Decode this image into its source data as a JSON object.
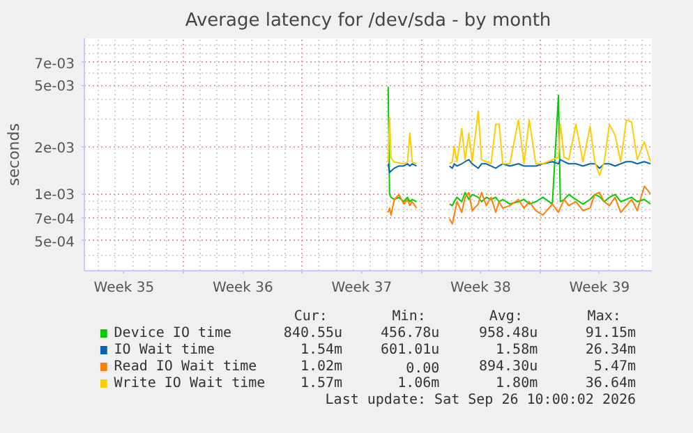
{
  "chart_data": {
    "type": "line",
    "title": "Average latency for /dev/sda - by month",
    "ylabel": "seconds",
    "log": "y",
    "grid": true,
    "legend": "bottom",
    "ylim": [
      0.00032,
      0.01
    ],
    "yticks": [
      {
        "value": 0.0005,
        "label": "5e-04"
      },
      {
        "value": 0.0007,
        "label": "7e-04"
      },
      {
        "value": 0.001,
        "label": "1e-03"
      },
      {
        "value": 0.002,
        "label": "2e-03"
      },
      {
        "value": 0.005,
        "label": "5e-03"
      },
      {
        "value": 0.007,
        "label": "7e-03"
      }
    ],
    "xlim": [
      "2026-08-25T04:00",
      "2026-09-27T14:00"
    ],
    "xticks": [
      {
        "value": "2026-08-27T12:00",
        "label": "Week 35"
      },
      {
        "value": "2026-08-31",
        "label": null
      },
      {
        "value": "2026-09-03T12:00",
        "label": "Week 36"
      },
      {
        "value": "2026-09-07",
        "label": null
      },
      {
        "value": "2026-09-10T12:00",
        "label": "Week 37"
      },
      {
        "value": "2026-09-14",
        "label": null
      },
      {
        "value": "2026-09-17T12:00",
        "label": "Week 38"
      },
      {
        "value": "2026-09-21",
        "label": null
      },
      {
        "value": "2026-09-24T12:00",
        "label": "Week 39"
      }
    ],
    "x": [
      "2026-09-12T01:20",
      "2026-09-12T03:20",
      "2026-09-12T05:20",
      "2026-09-12T10:00",
      "2026-09-12T16:40",
      "2026-09-12T23:20",
      "2026-09-13T04:40",
      "2026-09-13T08:00",
      "2026-09-13T11:20",
      "2026-09-13T17:20",
      "2026-09-14T16:40",
      "2026-09-15T16:00",
      "2026-09-15T20:00",
      "2026-09-15T22:40",
      "2026-09-16T02:40",
      "2026-09-16T09:20",
      "2026-09-16T14:00",
      "2026-09-16T19:20",
      "2026-09-17T00:00",
      "2026-09-17T08:40",
      "2026-09-17T13:20",
      "2026-09-17T20:00",
      "2026-09-18T02:40",
      "2026-09-18T09:20",
      "2026-09-18T14:00",
      "2026-09-18T19:20",
      "2026-09-19T05:20",
      "2026-09-19T17:20",
      "2026-09-20T01:20",
      "2026-09-20T08:40",
      "2026-09-20T18:00",
      "2026-09-21T04:00",
      "2026-09-21T17:20",
      "2026-09-22T02:00",
      "2026-09-22T04:40",
      "2026-09-22T10:00",
      "2026-09-22T16:40",
      "2026-09-23T02:40",
      "2026-09-23T12:40",
      "2026-09-23T22:40",
      "2026-09-24T05:20",
      "2026-09-24T12:00",
      "2026-09-24T18:40",
      "2026-09-25T02:00",
      "2026-09-25T10:00",
      "2026-09-25T18:00",
      "2026-09-26T02:00",
      "2026-09-26T09:20",
      "2026-09-26T17:20",
      "2026-09-27T03:20",
      "2026-09-27T12:00"
    ],
    "series": [
      {
        "name": "Device IO time",
        "color": "#00cc00",
        "values": [
          0.00489,
          0.00099,
          0.00095,
          0.00092,
          0.00095,
          0.00089,
          0.00095,
          0.00089,
          0.00092,
          0.00089,
          null,
          0.00086,
          0.00084,
          0.00089,
          0.00095,
          0.00089,
          0.00102,
          0.00092,
          0.00099,
          0.00095,
          0.00089,
          0.00095,
          0.00092,
          0.00095,
          0.00089,
          0.00092,
          0.00086,
          0.00089,
          0.00092,
          0.00086,
          0.00089,
          0.00095,
          0.00086,
          0.00429,
          0.00089,
          0.00092,
          0.00099,
          0.00092,
          0.00086,
          0.00092,
          0.00099,
          0.00096,
          0.00089,
          0.00095,
          0.00099,
          0.00089,
          0.00092,
          0.00095,
          0.00089,
          0.00092,
          0.00086
        ]
      },
      {
        "name": "IO Wait time",
        "color": "#0066b3",
        "values": [
          0.00156,
          0.00137,
          0.0014,
          0.00146,
          0.00151,
          0.00151,
          0.00156,
          0.00151,
          0.00156,
          0.00151,
          null,
          0.00151,
          0.00146,
          0.00156,
          0.00151,
          0.00156,
          0.00161,
          0.00166,
          0.00156,
          0.00146,
          0.00156,
          0.00156,
          0.00151,
          0.00146,
          0.00151,
          0.00156,
          0.00151,
          0.00156,
          0.00151,
          0.00151,
          0.00151,
          0.00156,
          0.00161,
          0.00156,
          0.00166,
          0.00161,
          0.00156,
          0.00156,
          0.00151,
          0.00156,
          0.00156,
          0.00146,
          0.00156,
          0.00156,
          0.00151,
          0.00156,
          0.00161,
          0.00161,
          0.00156,
          0.00161,
          0.00156
        ]
      },
      {
        "name": "Read IO Wait time",
        "color": "#ff8000",
        "values": [
          0.00076,
          0.00081,
          0.00073,
          0.00092,
          0.00099,
          0.00086,
          0.00092,
          0.00084,
          0.00089,
          0.00081,
          null,
          0.00069,
          0.00064,
          0.00073,
          0.00089,
          0.00076,
          0.00095,
          0.00102,
          0.00078,
          0.00086,
          0.00102,
          0.00084,
          0.00095,
          0.00076,
          0.00089,
          0.00081,
          0.00084,
          0.00092,
          0.00081,
          0.00089,
          0.00078,
          0.00073,
          0.00086,
          0.00076,
          0.00081,
          0.00092,
          0.00084,
          0.00089,
          0.00078,
          0.00081,
          0.00099,
          0.00102,
          0.00089,
          0.00084,
          0.00095,
          0.00076,
          0.00084,
          0.00092,
          0.00078,
          0.00112,
          0.001
        ]
      },
      {
        "name": "Write IO Wait time",
        "color": "#ffcc00",
        "values": [
          0.0016,
          0.0031,
          0.0017,
          0.0016,
          0.00158,
          0.00156,
          0.0016,
          0.00246,
          0.0016,
          0.00156,
          null,
          0.00156,
          0.00161,
          0.00202,
          0.00161,
          0.00263,
          0.00166,
          0.00246,
          0.00161,
          0.00341,
          0.00166,
          0.00161,
          0.00156,
          0.0028,
          0.0028,
          0.00156,
          0.00156,
          0.00299,
          0.00156,
          0.00299,
          0.00156,
          0.00156,
          0.00166,
          0.00172,
          0.0028,
          0.00172,
          0.00166,
          0.0028,
          0.00161,
          0.00272,
          0.00161,
          0.00132,
          0.00161,
          0.0028,
          0.00238,
          0.00161,
          0.00299,
          0.0029,
          0.00166,
          0.00216,
          0.00161
        ]
      }
    ],
    "annotations": [
      "Cur:",
      "Min:",
      "Avg:",
      "Max:",
      "840.55u",
      "456.78u",
      "958.48u",
      "91.15m",
      "1.54m",
      "601.01u",
      "1.58m",
      "26.34m",
      "1.02m",
      "0.00",
      "894.30u",
      "5.47m",
      "1.57m",
      "1.06m",
      "1.80m",
      "36.64m",
      "Last update: Sat Sep 26 10:00:02 2026"
    ]
  }
}
